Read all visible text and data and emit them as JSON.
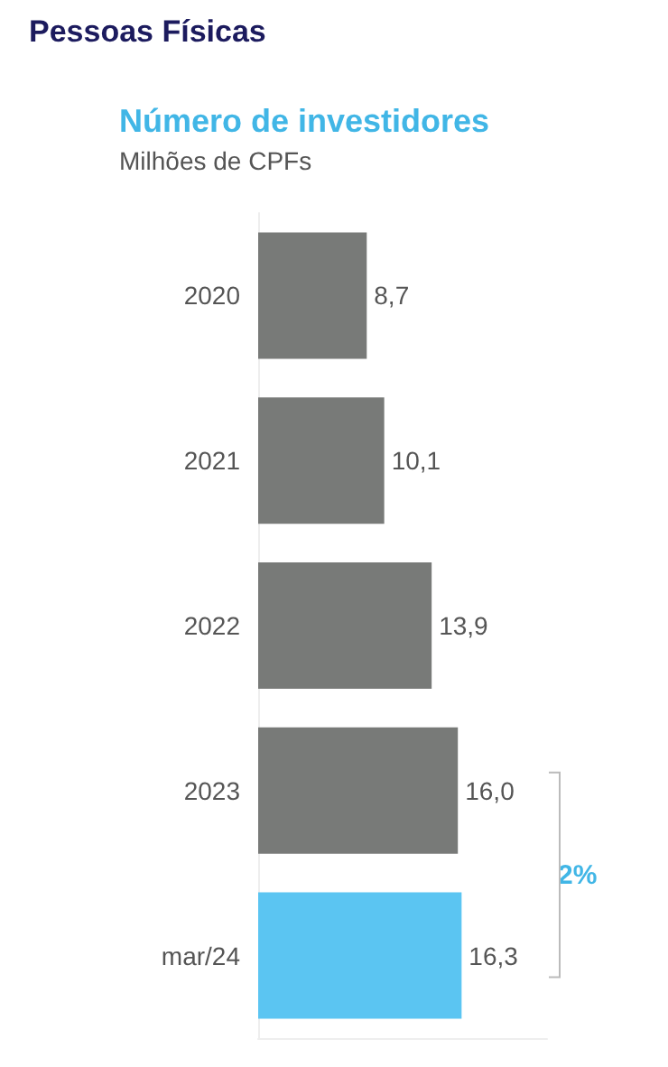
{
  "chart_data": {
    "type": "bar",
    "orientation": "horizontal",
    "title": "Pessoas Físicas",
    "subtitle": "Número de investidores",
    "xlabel": "Milhões de CPFs",
    "categories": [
      "2020",
      "2021",
      "2022",
      "2023",
      "mar/24"
    ],
    "values": [
      8.7,
      10.1,
      13.9,
      16.0,
      16.3
    ],
    "colors": [
      "#787a78",
      "#787a78",
      "#787a78",
      "#787a78",
      "#5bc5f2"
    ],
    "value_labels": [
      "8,7",
      "10,1",
      "13,9",
      "16,0",
      "16,3"
    ],
    "annotations": [
      "2%"
    ],
    "grid": false
  }
}
